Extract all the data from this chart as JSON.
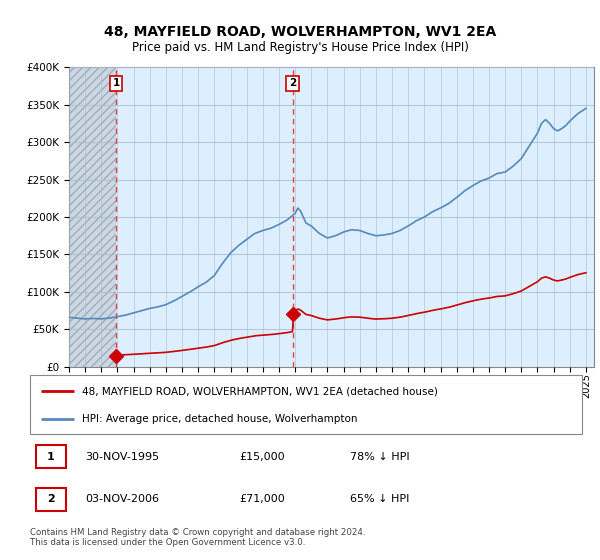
{
  "title": "48, MAYFIELD ROAD, WOLVERHAMPTON, WV1 2EA",
  "subtitle": "Price paid vs. HM Land Registry's House Price Index (HPI)",
  "legend_label_red": "48, MAYFIELD ROAD, WOLVERHAMPTON, WV1 2EA (detached house)",
  "legend_label_blue": "HPI: Average price, detached house, Wolverhampton",
  "footnote": "Contains HM Land Registry data © Crown copyright and database right 2024.\nThis data is licensed under the Open Government Licence v3.0.",
  "table": [
    {
      "num": "1",
      "date": "30-NOV-1995",
      "price": "£15,000",
      "hpi": "78% ↓ HPI"
    },
    {
      "num": "2",
      "date": "03-NOV-2006",
      "price": "£71,000",
      "hpi": "65% ↓ HPI"
    }
  ],
  "sale1_year": 1995.92,
  "sale1_price": 15000,
  "sale2_year": 2006.84,
  "sale2_price": 71000,
  "hpi_x": [
    1993.0,
    1993.08,
    1993.17,
    1993.25,
    1993.33,
    1993.42,
    1993.5,
    1993.58,
    1993.67,
    1993.75,
    1993.83,
    1993.92,
    1994.0,
    1994.08,
    1994.17,
    1994.25,
    1994.33,
    1994.42,
    1994.5,
    1994.58,
    1994.67,
    1994.75,
    1994.83,
    1994.92,
    1995.0,
    1995.08,
    1995.17,
    1995.25,
    1995.33,
    1995.42,
    1995.5,
    1995.58,
    1995.67,
    1995.75,
    1995.83,
    1995.92,
    1996.0,
    1996.08,
    1996.17,
    1996.25,
    1996.33,
    1996.42,
    1996.5,
    1996.58,
    1996.67,
    1996.75,
    1996.83,
    1996.92,
    1997.0,
    1997.08,
    1997.17,
    1997.25,
    1997.33,
    1997.42,
    1997.5,
    1997.58,
    1997.67,
    1997.75,
    1997.83,
    1997.92,
    1998.0,
    1998.08,
    1998.17,
    1998.25,
    1998.33,
    1998.42,
    1998.5,
    1998.58,
    1998.67,
    1998.75,
    1998.83,
    1998.92,
    1999.0,
    1999.08,
    1999.17,
    1999.25,
    1999.33,
    1999.42,
    1999.5,
    1999.58,
    1999.67,
    1999.75,
    1999.83,
    1999.92,
    2000.0,
    2000.08,
    2000.17,
    2000.25,
    2000.33,
    2000.42,
    2000.5,
    2000.58,
    2000.67,
    2000.75,
    2000.83,
    2000.92,
    2001.0,
    2001.08,
    2001.17,
    2001.25,
    2001.33,
    2001.42,
    2001.5,
    2001.58,
    2001.67,
    2001.75,
    2001.83,
    2001.92,
    2002.0,
    2002.08,
    2002.17,
    2002.25,
    2002.33,
    2002.42,
    2002.5,
    2002.58,
    2002.67,
    2002.75,
    2002.83,
    2002.92,
    2003.0,
    2003.08,
    2003.17,
    2003.25,
    2003.33,
    2003.42,
    2003.5,
    2003.58,
    2003.67,
    2003.75,
    2003.83,
    2003.92,
    2004.0,
    2004.08,
    2004.17,
    2004.25,
    2004.33,
    2004.42,
    2004.5,
    2004.58,
    2004.67,
    2004.75,
    2004.83,
    2004.92,
    2005.0,
    2005.08,
    2005.17,
    2005.25,
    2005.33,
    2005.42,
    2005.5,
    2005.58,
    2005.67,
    2005.75,
    2005.83,
    2005.92,
    2006.0,
    2006.08,
    2006.17,
    2006.25,
    2006.33,
    2006.42,
    2006.5,
    2006.58,
    2006.67,
    2006.75,
    2006.83,
    2006.92,
    2007.0,
    2007.08,
    2007.17,
    2007.25,
    2007.33,
    2007.42,
    2007.5,
    2007.58,
    2007.67,
    2007.75,
    2007.83,
    2007.92,
    2008.0,
    2008.08,
    2008.17,
    2008.25,
    2008.33,
    2008.42,
    2008.5,
    2008.58,
    2008.67,
    2008.75,
    2008.83,
    2008.92,
    2009.0,
    2009.08,
    2009.17,
    2009.25,
    2009.33,
    2009.42,
    2009.5,
    2009.58,
    2009.67,
    2009.75,
    2009.83,
    2009.92,
    2010.0,
    2010.08,
    2010.17,
    2010.25,
    2010.33,
    2010.42,
    2010.5,
    2010.58,
    2010.67,
    2010.75,
    2010.83,
    2010.92,
    2011.0,
    2011.08,
    2011.17,
    2011.25,
    2011.33,
    2011.42,
    2011.5,
    2011.58,
    2011.67,
    2011.75,
    2011.83,
    2011.92,
    2012.0,
    2012.08,
    2012.17,
    2012.25,
    2012.33,
    2012.42,
    2012.5,
    2012.58,
    2012.67,
    2012.75,
    2012.83,
    2012.92,
    2013.0,
    2013.08,
    2013.17,
    2013.25,
    2013.33,
    2013.42,
    2013.5,
    2013.58,
    2013.67,
    2013.75,
    2013.83,
    2013.92,
    2014.0,
    2014.08,
    2014.17,
    2014.25,
    2014.33,
    2014.42,
    2014.5,
    2014.58,
    2014.67,
    2014.75,
    2014.83,
    2014.92,
    2015.0,
    2015.08,
    2015.17,
    2015.25,
    2015.33,
    2015.42,
    2015.5,
    2015.58,
    2015.67,
    2015.75,
    2015.83,
    2015.92,
    2016.0,
    2016.08,
    2016.17,
    2016.25,
    2016.33,
    2016.42,
    2016.5,
    2016.58,
    2016.67,
    2016.75,
    2016.83,
    2016.92,
    2017.0,
    2017.08,
    2017.17,
    2017.25,
    2017.33,
    2017.42,
    2017.5,
    2017.58,
    2017.67,
    2017.75,
    2017.83,
    2017.92,
    2018.0,
    2018.08,
    2018.17,
    2018.25,
    2018.33,
    2018.42,
    2018.5,
    2018.58,
    2018.67,
    2018.75,
    2018.83,
    2018.92,
    2019.0,
    2019.08,
    2019.17,
    2019.25,
    2019.33,
    2019.42,
    2019.5,
    2019.58,
    2019.67,
    2019.75,
    2019.83,
    2019.92,
    2020.0,
    2020.08,
    2020.17,
    2020.25,
    2020.33,
    2020.42,
    2020.5,
    2020.58,
    2020.67,
    2020.75,
    2020.83,
    2020.92,
    2021.0,
    2021.08,
    2021.17,
    2021.25,
    2021.33,
    2021.42,
    2021.5,
    2021.58,
    2021.67,
    2021.75,
    2021.83,
    2021.92,
    2022.0,
    2022.08,
    2022.17,
    2022.25,
    2022.33,
    2022.42,
    2022.5,
    2022.58,
    2022.67,
    2022.75,
    2022.83,
    2022.92,
    2023.0,
    2023.08,
    2023.17,
    2023.25,
    2023.33,
    2023.42,
    2023.5,
    2023.58,
    2023.67,
    2023.75,
    2023.83,
    2023.92,
    2024.0,
    2024.08,
    2024.17,
    2024.25,
    2024.33,
    2024.42,
    2024.5,
    2024.58,
    2024.67,
    2024.75,
    2024.83,
    2024.92,
    2025.0
  ],
  "vline1_year": 1995.92,
  "vline2_year": 2006.84,
  "ylim_min": 0,
  "ylim_max": 400000,
  "yticks": [
    0,
    50000,
    100000,
    150000,
    200000,
    250000,
    300000,
    350000,
    400000
  ],
  "ytick_labels": [
    "£0",
    "£50K",
    "£100K",
    "£150K",
    "£200K",
    "£250K",
    "£300K",
    "£350K",
    "£400K"
  ],
  "xtick_years": [
    1993,
    1994,
    1995,
    1996,
    1997,
    1998,
    1999,
    2000,
    2001,
    2002,
    2003,
    2004,
    2005,
    2006,
    2007,
    2008,
    2009,
    2010,
    2011,
    2012,
    2013,
    2014,
    2015,
    2016,
    2017,
    2018,
    2019,
    2020,
    2021,
    2022,
    2023,
    2024,
    2025
  ],
  "plot_bg_color": "#ddeeff",
  "hatch_facecolor": "#c8d8e8",
  "grid_color": "#aabbcc",
  "red_color": "#cc0000",
  "blue_color": "#5588bb",
  "vline_color": "#dd4444",
  "title_fontsize": 10,
  "subtitle_fontsize": 8.5
}
